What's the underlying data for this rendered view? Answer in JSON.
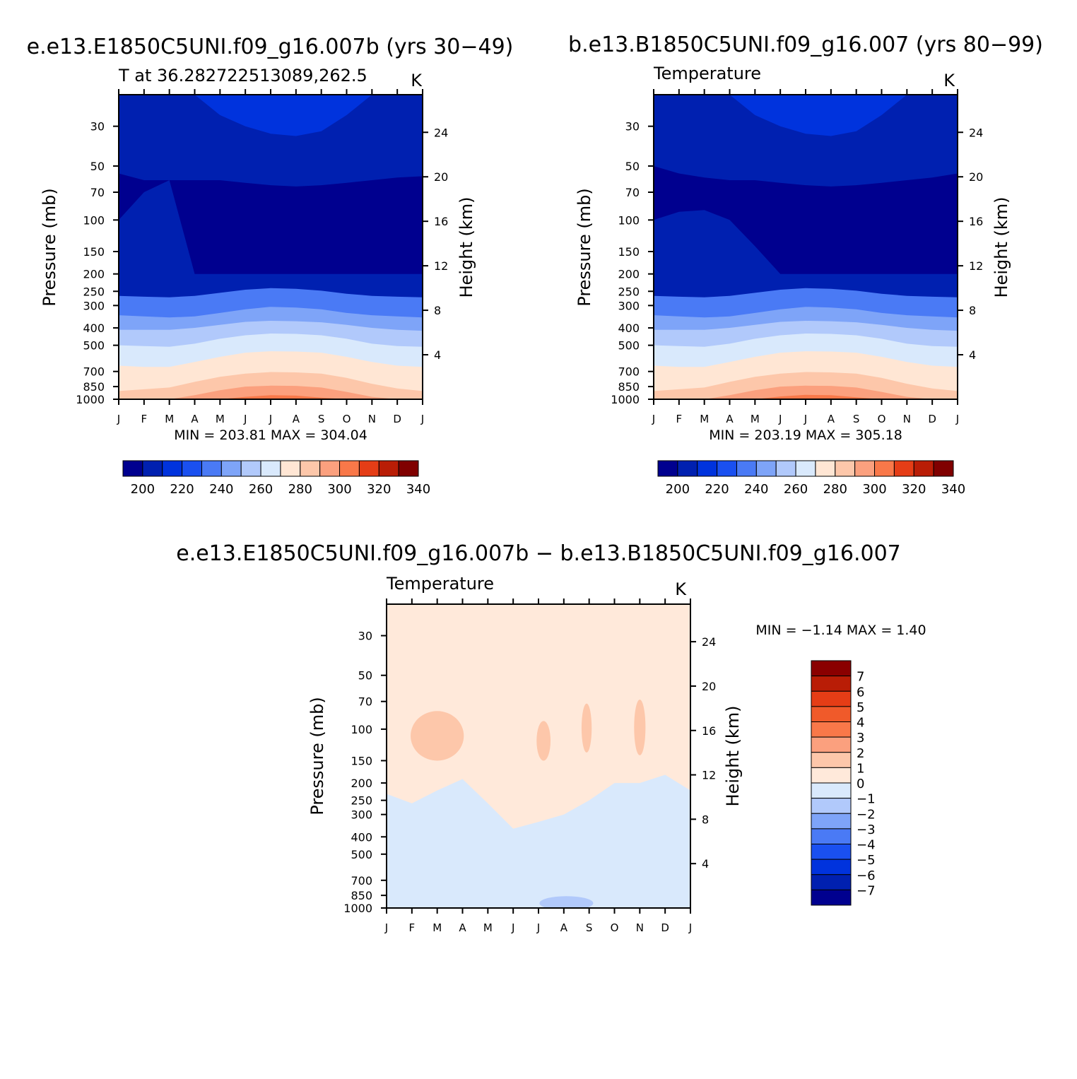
{
  "header": {
    "left_run_title": "e.e13.E1850C5UNI.f09_g16.007b (yrs 30−49)",
    "right_run_title": "b.e13.B1850C5UNI.f09_g16.007 (yrs 80−99)",
    "diff_title": "e.e13.E1850C5UNI.f09_g16.007b − b.e13.B1850C5UNI.f09_g16.007"
  },
  "colors": {
    "abs_levels": [
      "#00008f",
      "#0020b0",
      "#0033dd",
      "#1a50f0",
      "#4a7af5",
      "#7ea4f8",
      "#b1c9fb",
      "#d9e9fc",
      "#ffe6d4",
      "#fdc7aa",
      "#fba07e",
      "#f97849",
      "#e53d16",
      "#b91d06",
      "#800000"
    ],
    "diff_levels": [
      "#00008f",
      "#0020b0",
      "#0033dd",
      "#1a50f0",
      "#4a7af5",
      "#7ea4f8",
      "#b1c9fb",
      "#d9e9fc",
      "#ffe9da",
      "#fdc7aa",
      "#fba07e",
      "#f97849",
      "#f05a2a",
      "#e53d16",
      "#b91d06",
      "#8a0000"
    ]
  },
  "chart_data": [
    {
      "type": "heatmap",
      "title": "T at 36.282722513089,262.5",
      "units": "K",
      "xlabel": "",
      "ylabel": "Pressure (mb)",
      "ylabel_right": "Height (km)",
      "x_ticks": [
        "J",
        "F",
        "M",
        "A",
        "M",
        "J",
        "J",
        "A",
        "S",
        "O",
        "N",
        "D",
        "J"
      ],
      "y_ticks": [
        30,
        50,
        70,
        100,
        150,
        200,
        250,
        300,
        400,
        500,
        700,
        850,
        1000
      ],
      "y_ticks_right": [
        24,
        20,
        16,
        12,
        8,
        4
      ],
      "ylim": [
        1000,
        20
      ],
      "stats": {
        "min_label": "MIN =",
        "min": "203.81",
        "max_label": "MAX =",
        "max": "304.04"
      },
      "colorbar": {
        "levels": [
          195,
          205,
          215,
          225,
          235,
          245,
          255,
          265,
          275,
          285,
          295,
          305,
          315,
          325,
          335,
          345
        ],
        "tick_labels": [
          "200",
          "220",
          "240",
          "260",
          "280",
          "300",
          "320",
          "340"
        ]
      },
      "boundaries": [
        {
          "level": 205,
          "y": [
            100,
            70,
            60,
            200,
            200,
            200,
            200,
            200,
            200,
            200,
            200,
            200,
            200
          ]
        },
        {
          "level": 215,
          "y": [
            55,
            60,
            60,
            60,
            60,
            62,
            64,
            65,
            64,
            62,
            60,
            58,
            57
          ]
        },
        {
          "level": 225,
          "y": [
            20,
            20,
            20,
            20,
            26,
            30,
            33,
            34,
            32,
            26,
            20,
            20,
            20
          ]
        },
        {
          "level": 235,
          "y": [
            265,
            268,
            270,
            265,
            255,
            245,
            240,
            242,
            248,
            258,
            265,
            268,
            270
          ]
        },
        {
          "level": 245,
          "y": [
            340,
            345,
            350,
            345,
            330,
            315,
            305,
            308,
            315,
            330,
            340,
            345,
            350
          ]
        },
        {
          "level": 255,
          "y": [
            410,
            410,
            410,
            400,
            385,
            370,
            365,
            367,
            372,
            385,
            400,
            410,
            415
          ]
        },
        {
          "level": 265,
          "y": [
            500,
            505,
            510,
            490,
            460,
            440,
            430,
            432,
            440,
            460,
            490,
            505,
            510
          ]
        },
        {
          "level": 275,
          "y": [
            650,
            660,
            660,
            620,
            580,
            550,
            540,
            542,
            550,
            580,
            620,
            650,
            660
          ]
        },
        {
          "level": 285,
          "y": [
            900,
            880,
            860,
            800,
            750,
            720,
            705,
            708,
            720,
            760,
            820,
            870,
            900
          ]
        },
        {
          "level": 295,
          "y": [
            1000,
            1000,
            1000,
            950,
            890,
            850,
            840,
            842,
            860,
            910,
            970,
            1000,
            1000
          ]
        },
        {
          "level": 305,
          "y": [
            1000,
            1000,
            1000,
            1000,
            1000,
            970,
            950,
            955,
            980,
            1000,
            1000,
            1000,
            1000
          ]
        }
      ]
    },
    {
      "type": "heatmap",
      "title": "Temperature",
      "units": "K",
      "xlabel": "",
      "ylabel": "Pressure (mb)",
      "ylabel_right": "Height (km)",
      "x_ticks": [
        "J",
        "F",
        "M",
        "A",
        "M",
        "J",
        "J",
        "A",
        "S",
        "O",
        "N",
        "D",
        "J"
      ],
      "y_ticks": [
        30,
        50,
        70,
        100,
        150,
        200,
        250,
        300,
        400,
        500,
        700,
        850,
        1000
      ],
      "y_ticks_right": [
        24,
        20,
        16,
        12,
        8,
        4
      ],
      "ylim": [
        1000,
        20
      ],
      "stats": {
        "min_label": "MIN =",
        "min": "203.19",
        "max_label": "MAX =",
        "max": "305.18"
      },
      "colorbar": {
        "levels": [
          195,
          205,
          215,
          225,
          235,
          245,
          255,
          265,
          275,
          285,
          295,
          305,
          315,
          325,
          335,
          345
        ],
        "tick_labels": [
          "200",
          "220",
          "240",
          "260",
          "280",
          "300",
          "320",
          "340"
        ]
      },
      "boundaries": [
        {
          "level": 205,
          "y": [
            100,
            90,
            88,
            100,
            140,
            200,
            200,
            200,
            200,
            200,
            200,
            200,
            200
          ]
        },
        {
          "level": 215,
          "y": [
            50,
            55,
            58,
            60,
            60,
            62,
            64,
            65,
            64,
            62,
            60,
            58,
            55
          ]
        },
        {
          "level": 225,
          "y": [
            20,
            20,
            20,
            20,
            26,
            30,
            33,
            34,
            32,
            26,
            20,
            20,
            20
          ]
        },
        {
          "level": 235,
          "y": [
            265,
            268,
            270,
            265,
            255,
            245,
            240,
            242,
            248,
            258,
            265,
            268,
            270
          ]
        },
        {
          "level": 245,
          "y": [
            340,
            345,
            350,
            345,
            330,
            315,
            305,
            308,
            315,
            330,
            340,
            345,
            350
          ]
        },
        {
          "level": 255,
          "y": [
            410,
            410,
            410,
            400,
            385,
            370,
            365,
            367,
            372,
            385,
            400,
            410,
            415
          ]
        },
        {
          "level": 265,
          "y": [
            500,
            505,
            510,
            490,
            460,
            440,
            430,
            432,
            440,
            460,
            490,
            505,
            510
          ]
        },
        {
          "level": 275,
          "y": [
            650,
            660,
            660,
            620,
            580,
            550,
            540,
            542,
            550,
            580,
            620,
            650,
            660
          ]
        },
        {
          "level": 285,
          "y": [
            900,
            880,
            860,
            800,
            750,
            720,
            705,
            708,
            720,
            760,
            820,
            870,
            900
          ]
        },
        {
          "level": 295,
          "y": [
            1000,
            1000,
            1000,
            950,
            890,
            850,
            840,
            842,
            860,
            910,
            970,
            1000,
            1000
          ]
        },
        {
          "level": 305,
          "y": [
            1000,
            1000,
            1000,
            1000,
            1000,
            965,
            945,
            950,
            975,
            1000,
            1000,
            1000,
            1000
          ]
        }
      ]
    },
    {
      "type": "heatmap",
      "title": "Temperature",
      "units": "K",
      "xlabel": "",
      "ylabel": "Pressure (mb)",
      "ylabel_right": "Height (km)",
      "x_ticks": [
        "J",
        "F",
        "M",
        "A",
        "M",
        "J",
        "J",
        "A",
        "S",
        "O",
        "N",
        "D",
        "J"
      ],
      "y_ticks": [
        30,
        50,
        70,
        100,
        150,
        200,
        250,
        300,
        400,
        500,
        700,
        850,
        1000
      ],
      "y_ticks_right": [
        24,
        20,
        16,
        12,
        8,
        4
      ],
      "ylim": [
        1000,
        20
      ],
      "stats": {
        "min_label": "MIN =",
        "min": "−1.14",
        "max_label": "MAX =",
        "max": "1.40"
      },
      "colorbar": {
        "levels": [
          -8,
          -7,
          -6,
          -5,
          -4,
          -3,
          -2,
          -1,
          0,
          1,
          2,
          3,
          4,
          5,
          6,
          7,
          8
        ],
        "tick_labels": [
          "7",
          "6",
          "5",
          "4",
          "3",
          "2",
          "1",
          "0",
          "−1",
          "−2",
          "−3",
          "−4",
          "−5",
          "−6",
          "−7"
        ]
      },
      "boundaries": [
        {
          "level": -0.5,
          "y": [
            230,
            260,
            220,
            190,
            260,
            360,
            330,
            300,
            250,
            200,
            200,
            180,
            220
          ]
        },
        {
          "level": 0.5,
          "y": [
            130,
            120,
            90,
            130,
            200,
            200,
            150,
            160,
            150,
            200,
            140,
            130,
            200
          ]
        }
      ]
    }
  ]
}
